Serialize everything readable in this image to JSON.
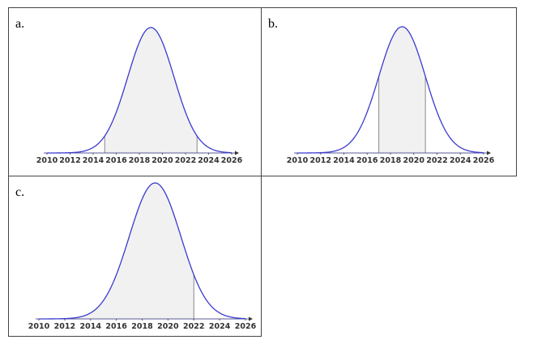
{
  "chart_data": [
    {
      "type": "normal",
      "label": "a.",
      "xlim": [
        2010,
        2026
      ],
      "xticks": [
        2010,
        2012,
        2014,
        2016,
        2018,
        2020,
        2022,
        2024,
        2026
      ],
      "mean": 2019,
      "sd": 2,
      "shade": [
        2015,
        2023
      ],
      "color": "#3a3ad0"
    },
    {
      "type": "normal",
      "label": "b.",
      "xlim": [
        2010,
        2026
      ],
      "xticks": [
        2010,
        2012,
        2014,
        2016,
        2018,
        2020,
        2022,
        2024,
        2026
      ],
      "mean": 2019,
      "sd": 2,
      "shade": [
        2017,
        2021
      ],
      "color": "#3a3ad0"
    },
    {
      "type": "normal",
      "label": "c.",
      "xlim": [
        2010,
        2026
      ],
      "xticks": [
        2010,
        2012,
        2014,
        2016,
        2018,
        2020,
        2022,
        2024,
        2026
      ],
      "mean": 2019,
      "sd": 2,
      "shade": [
        2010,
        2022
      ],
      "color": "#3a3ad0"
    }
  ]
}
